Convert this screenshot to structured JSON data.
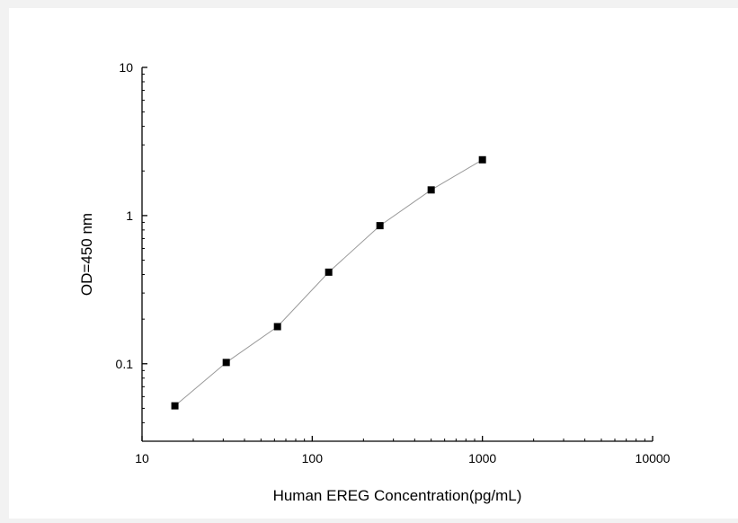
{
  "chart_data": {
    "type": "scatter",
    "xlabel": "Human EREG Concentration(pg/mL)",
    "ylabel": "OD=450 nm",
    "x_scale": "log",
    "y_scale": "log",
    "xlim": [
      10,
      10000
    ],
    "ylim": [
      0.03,
      10
    ],
    "x_ticks": [
      10,
      100,
      1000,
      10000
    ],
    "x_tick_labels": [
      "10",
      "100",
      "1000",
      "10000"
    ],
    "y_ticks": [
      0.1,
      1,
      10
    ],
    "y_tick_labels": [
      "0.1",
      "1",
      "10"
    ],
    "grid": false,
    "legend": "none",
    "marker": "square",
    "line_connected": true,
    "colors": {
      "marker": "#000000",
      "line": "#999999",
      "axis": "#000000"
    },
    "series": [
      {
        "x": [
          15.6,
          31.25,
          62.5,
          125,
          250,
          500,
          1000
        ],
        "y": [
          0.052,
          0.102,
          0.178,
          0.415,
          0.855,
          1.49,
          2.38
        ]
      }
    ]
  }
}
